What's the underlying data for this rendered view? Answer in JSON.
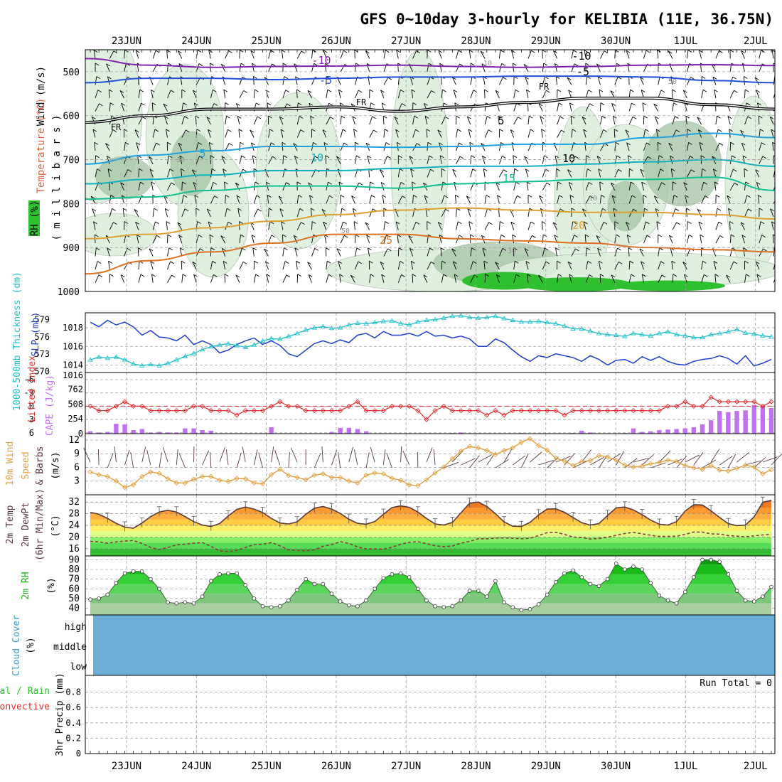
{
  "title": "GFS 0~10day 3-hourly for KELIBIA (11E, 36.75N)",
  "dates": [
    "23JUN",
    "24JUN",
    "25JUN",
    "26JUN",
    "27JUN",
    "28JUN",
    "29JUN",
    "30JUN",
    "1JUL",
    "2JUL"
  ],
  "colors": {
    "frame": "#000000",
    "grid": "#a0a0a0",
    "sounding_rh_light": "#dcefdc",
    "sounding_rh_mid": "#a8c8a8",
    "sounding_rh_dark": "#2ec02e",
    "slp": "#1f3fd0",
    "thickness": "#20c0c8",
    "lifted_index": "#e03030",
    "cape": "#c070f0",
    "wind10": "#e0a040",
    "barb": "#5a3a3a",
    "temp_fill": "#ff8c1a",
    "temp_line": "#5a3a3a",
    "rh2m_dark": "#14b814",
    "rh2m_light": "#8fd08f",
    "cloud": "#6baed6"
  },
  "labels": {
    "wind_label": "Wind (m/s)",
    "temp_label": "Temperature (°C)",
    "rh_label": "RH (%)",
    "mb_label": "( m i l l i b a r s )",
    "thickness_label": "1000-500mb Thickness (dm)",
    "slp_label": "SLP (mb)",
    "li_label": "Lifted Index",
    "cape_label": "CAPE (J/kg)",
    "wind10_label1": "10m Wind",
    "wind10_label2": "Speed",
    "wind10_label3": "& Barbs",
    "wind10_unit": "(m/s)",
    "t2m_label1": "2m Temp",
    "t2m_label2": "2m DewPt",
    "t2m_label3": "(6hr Min/Max)",
    "t2m_unit": "(°C)",
    "rh2m_label": "2m RH",
    "rh2m_unit": "(%)",
    "cloud_label": "Cloud Cover",
    "cloud_unit": "(%)",
    "cloud_levels": [
      "high",
      "middle",
      "low"
    ],
    "precip_label1": "Total / Rain",
    "precip_label2": "Convective",
    "precip_label3": "3hr Precip (mm)",
    "run_total": "Run Total = 0"
  },
  "chart_data": [
    {
      "type": "area",
      "panel": "sounding",
      "ylabel": "( m i l l i b a r s )",
      "yticks": [
        500,
        600,
        700,
        800,
        900,
        1000
      ],
      "ylim": [
        450,
        1000
      ],
      "contour_labels": [
        "-10",
        "-5",
        "FR",
        "5",
        "10",
        "15",
        "20",
        "25",
        "-10",
        "-5",
        "FR",
        "5",
        "10",
        "15",
        "20",
        "25"
      ],
      "rh_labels": [
        "10",
        "30",
        "50"
      ]
    },
    {
      "type": "line",
      "panel": "slp_thickness",
      "ylabel_left": "1000-500mb Thickness (dm)",
      "ylabel_right": "SLP (mb)",
      "thickness_ticks": [
        570,
        573,
        576,
        579
      ],
      "slp_ticks": [
        1014,
        1016,
        1018
      ],
      "series": [
        {
          "name": "SLP",
          "values": [
            1018.6,
            1018.1,
            1018.8,
            1018.3,
            1018.6,
            1018.1,
            1017.2,
            1017.7,
            1017.0,
            1016.9,
            1016.6,
            1017.2,
            1016.2,
            1016.6,
            1016.2,
            1015.3,
            1015.6,
            1016.2,
            1016.6,
            1016.9,
            1016.2,
            1016.6,
            1016.1,
            1015.2,
            1014.9,
            1015.6,
            1016.3,
            1016.6,
            1016.3,
            1016.7,
            1016.4,
            1017.2,
            1017.4,
            1016.9,
            1017.6,
            1017.2,
            1017.2,
            1017.4,
            1017.1,
            1017.6,
            1017.1,
            1017.2,
            1016.9,
            1017.1,
            1016.8,
            1016.0,
            1016.0,
            1016.8,
            1016.4,
            1015.6,
            1014.9,
            1014.4,
            1015.0,
            1014.8,
            1015.2,
            1015.0,
            1014.8,
            1014.4,
            1015.0,
            1014.6,
            1014.0,
            1014.5,
            1014.6,
            1014.2,
            1014.9,
            1014.5,
            1014.9,
            1014.4,
            1014.1,
            1014.0,
            1014.4,
            1014.6,
            1014.7,
            1015.0,
            1014.7,
            1014.1,
            1015.0,
            1013.9,
            1014.2,
            1014.6
          ]
        },
        {
          "name": "Thickness",
          "values": [
            572.0,
            572.5,
            572.3,
            572.5,
            572.0,
            571.3,
            571.0,
            571.2,
            571.0,
            571.4,
            572.0,
            572.6,
            573.1,
            573.8,
            574.3,
            574.6,
            574.8,
            574.5,
            574.2,
            574.6,
            575.3,
            575.7,
            575.6,
            576.1,
            576.6,
            577.2,
            577.6,
            577.8,
            577.5,
            577.6,
            578.1,
            578.4,
            578.3,
            578.5,
            578.7,
            578.8,
            578.3,
            578.1,
            578.6,
            578.9,
            579.0,
            579.3,
            579.6,
            579.7,
            579.4,
            579.3,
            579.4,
            579.6,
            579.2,
            578.9,
            578.6,
            578.6,
            578.7,
            578.5,
            578.3,
            577.9,
            577.4,
            577.4,
            577.0,
            576.6,
            576.4,
            576.3,
            576.1,
            576.6,
            576.4,
            576.2,
            576.6,
            576.9,
            576.4,
            576.2,
            575.9,
            575.9,
            576.4,
            576.6,
            576.9,
            577.3,
            576.7,
            576.5,
            576.2,
            576.0
          ]
        }
      ]
    },
    {
      "type": "bar",
      "panel": "li_cape",
      "ylabel_left": "Lifted Index",
      "ylabel_right": "CAPE (J/kg)",
      "li_ticks": [
        -6,
        -3,
        0,
        3,
        6
      ],
      "cape_ticks": [
        0,
        254,
        508,
        762
      ],
      "series": [
        {
          "name": "Lifted Index",
          "values": [
            0,
            1,
            1,
            0,
            -1,
            0,
            0,
            1,
            1,
            1,
            1,
            1,
            0,
            0,
            1,
            1,
            1,
            2,
            1,
            1,
            1,
            0,
            -1,
            0,
            0,
            1,
            1,
            1,
            1,
            1,
            0,
            -1,
            1,
            1,
            1,
            0,
            0,
            0,
            1,
            3,
            1,
            0,
            1,
            1,
            1,
            1,
            2,
            1,
            2,
            1,
            1,
            1,
            1,
            1,
            1,
            2,
            1,
            1,
            1,
            1,
            1,
            1,
            1,
            1,
            1,
            1,
            1,
            0,
            0,
            -1,
            0,
            0,
            -2,
            -1,
            -1,
            -1,
            -1,
            -1,
            0,
            -1
          ]
        },
        {
          "name": "CAPE",
          "values": [
            40,
            20,
            30,
            170,
            160,
            60,
            80,
            20,
            30,
            20,
            20,
            90,
            90,
            60,
            50,
            0,
            0,
            0,
            0,
            0,
            0,
            110,
            0,
            0,
            0,
            0,
            0,
            0,
            30,
            100,
            100,
            80,
            40,
            0,
            0,
            0,
            0,
            0,
            0,
            0,
            0,
            0,
            10,
            20,
            0,
            0,
            0,
            0,
            0,
            0,
            10,
            0,
            0,
            0,
            0,
            0,
            10,
            50,
            20,
            0,
            0,
            0,
            10,
            90,
            30,
            40,
            60,
            70,
            80,
            90,
            110,
            160,
            230,
            390,
            370,
            390,
            400,
            490,
            480,
            440
          ]
        }
      ]
    },
    {
      "type": "line",
      "panel": "wind10",
      "ylabel": "10m Wind Speed & Barbs (m/s)",
      "yticks": [
        3,
        6,
        9,
        12
      ],
      "values": [
        5.0,
        4.4,
        4.0,
        3.0,
        1.6,
        2.2,
        4.0,
        5.0,
        4.7,
        3.5,
        2.6,
        2.6,
        3.4,
        4.0,
        4.0,
        3.2,
        2.9,
        3.6,
        3.5,
        2.6,
        2.4,
        4.4,
        5.6,
        4.2,
        3.8,
        3.3,
        4.3,
        4.6,
        3.8,
        3.8,
        3.0,
        2.6,
        4.3,
        4.8,
        4.6,
        3.6,
        3.2,
        2.2,
        2.0,
        3.3,
        4.8,
        6.1,
        7.9,
        9.6,
        10.6,
        10.3,
        9.7,
        8.8,
        9.7,
        10.3,
        11.5,
        12.3,
        10.8,
        9.8,
        8.0,
        7.4,
        6.4,
        7.3,
        7.5,
        8.6,
        8.3,
        7.6,
        6.5,
        6.1,
        6.3,
        6.8,
        7.1,
        7.6,
        7.3,
        6.4,
        5.9,
        5.6,
        6.4,
        5.4,
        5.2,
        5.8,
        6.5,
        6.1,
        4.6,
        5.5
      ]
    },
    {
      "type": "area",
      "panel": "t2m",
      "ylabel": "2m Temp 2m DewPt (6hr Min/Max) (°C)",
      "yticks": [
        16,
        20,
        24,
        28,
        32
      ],
      "series": [
        {
          "name": "2m Temp",
          "values": [
            28.5,
            27.8,
            26.4,
            24.7,
            23.4,
            23.0,
            24.8,
            27.0,
            28.6,
            29.2,
            28.6,
            27.0,
            25.3,
            24.1,
            23.6,
            24.6,
            27.2,
            29.5,
            30.3,
            29.6,
            28.4,
            26.4,
            24.8,
            24.5,
            25.2,
            27.8,
            29.9,
            30.5,
            29.6,
            28.1,
            26.1,
            24.7,
            24.4,
            25.3,
            27.8,
            30.1,
            30.7,
            30.2,
            28.6,
            26.4,
            24.5,
            24.1,
            25.0,
            28.3,
            31.6,
            32.0,
            30.5,
            28.0,
            25.2,
            23.7,
            23.6,
            25.0,
            27.6,
            29.6,
            29.7,
            28.5,
            26.7,
            24.9,
            24.1,
            24.6,
            27.4,
            30.0,
            30.3,
            29.3,
            27.7,
            25.8,
            24.4,
            24.1,
            25.3,
            28.9,
            31.1,
            31.0,
            29.0,
            26.7,
            24.6,
            23.9,
            24.1,
            26.9,
            31.9,
            32.6
          ]
        },
        {
          "name": "2m DewPt",
          "values": [
            18.5,
            18.3,
            17.9,
            18.3,
            18.6,
            18.8,
            17.8,
            16.4,
            15.7,
            16.4,
            17.3,
            17.5,
            17.9,
            18.1,
            16.8,
            15.2,
            15.0,
            15.4,
            16.4,
            17.4,
            17.5,
            18.1,
            17.0,
            15.6,
            15.4,
            15.3,
            15.6,
            16.8,
            17.4,
            18.4,
            17.8,
            16.6,
            15.9,
            15.9,
            15.8,
            16.5,
            17.5,
            18.2,
            18.4,
            17.7,
            17.0,
            16.7,
            16.9,
            17.9,
            18.5,
            19.4,
            19.4,
            19.6,
            19.7,
            19.6,
            19.4,
            19.6,
            20.5,
            21.5,
            21.6,
            20.9,
            20.0,
            19.8,
            19.3,
            19.5,
            19.9,
            20.6,
            21.2,
            21.6,
            21.1,
            20.6,
            20.2,
            20.2,
            20.3,
            20.9,
            21.7,
            21.7,
            21.1,
            21.0,
            20.5,
            20.3,
            20.1,
            20.4,
            20.7,
            20.9
          ]
        }
      ]
    },
    {
      "type": "area",
      "panel": "rh2m",
      "ylabel": "2m RH (%)",
      "yticks": [
        40,
        50,
        60,
        70,
        80,
        90
      ],
      "values": [
        49,
        50,
        54,
        66,
        76,
        78,
        78,
        70,
        60,
        46,
        45,
        46,
        45,
        52,
        68,
        75,
        76,
        76,
        64,
        50,
        42,
        41,
        42,
        48,
        59,
        70,
        65,
        65,
        55,
        47,
        43,
        42,
        48,
        60,
        71,
        75,
        76,
        72,
        60,
        48,
        42,
        41,
        42,
        48,
        58,
        58,
        52,
        68,
        46,
        41,
        38,
        39,
        44,
        54,
        67,
        76,
        79,
        72,
        65,
        63,
        70,
        86,
        80,
        83,
        80,
        66,
        53,
        48,
        45,
        57,
        72,
        90,
        90,
        88,
        75,
        58,
        48,
        47,
        52,
        62
      ]
    },
    {
      "type": "area",
      "panel": "cloud",
      "ylabel": "Cloud Cover (%)",
      "levels": [
        "high",
        "middle",
        "low"
      ]
    },
    {
      "type": "bar",
      "panel": "precip",
      "ylabel": "3hr Precip (mm)",
      "yticks": [
        0,
        0.2,
        0.4,
        0.6,
        0.8
      ],
      "ylim": [
        0,
        1
      ],
      "values": [
        0,
        0,
        0,
        0,
        0,
        0,
        0,
        0,
        0,
        0
      ],
      "annotation": "Run Total = 0"
    }
  ]
}
